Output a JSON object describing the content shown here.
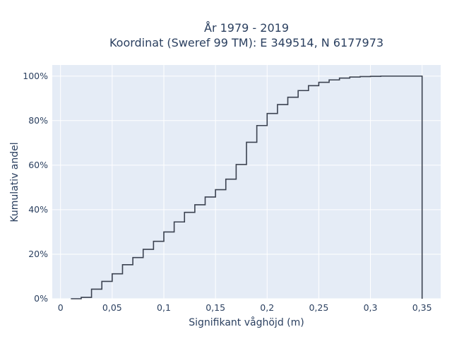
{
  "chart_data": {
    "type": "line",
    "step": true,
    "title_line1": "År 1979 - 2019",
    "title_line2": "Koordinat (Sweref 99 TM): E 349514, N 6177973",
    "xlabel": "Signifikant våghöjd (m)",
    "ylabel": "Kumulativ andel",
    "xlim": [
      -0.008,
      0.368
    ],
    "ylim": [
      0,
      1.05
    ],
    "x_ticks": [
      0,
      0.05,
      0.1,
      0.15,
      0.2,
      0.25,
      0.3,
      0.35
    ],
    "x_tick_labels": [
      "0",
      "0,05",
      "0,1",
      "0,15",
      "0,2",
      "0,25",
      "0,3",
      "0,35"
    ],
    "y_ticks": [
      0,
      0.2,
      0.4,
      0.6,
      0.8,
      1.0
    ],
    "y_tick_labels": [
      "0%",
      "20%",
      "40%",
      "60%",
      "80%",
      "100%"
    ],
    "grid": true,
    "line_color": "#3b4250",
    "plot_bg": "#e5ecf6",
    "series": [
      {
        "x": [
          0.01,
          0.02,
          0.03,
          0.04,
          0.05,
          0.06,
          0.07,
          0.08,
          0.09,
          0.1,
          0.11,
          0.12,
          0.13,
          0.14,
          0.15,
          0.16,
          0.17,
          0.18,
          0.19,
          0.2,
          0.21,
          0.22,
          0.23,
          0.24,
          0.25,
          0.26,
          0.27,
          0.28,
          0.29,
          0.3,
          0.31,
          0.32,
          0.33,
          0.34,
          0.35
        ],
        "y": [
          0.0,
          0.006,
          0.043,
          0.078,
          0.112,
          0.153,
          0.185,
          0.222,
          0.258,
          0.3,
          0.345,
          0.388,
          0.422,
          0.457,
          0.49,
          0.537,
          0.603,
          0.703,
          0.778,
          0.832,
          0.872,
          0.905,
          0.935,
          0.957,
          0.972,
          0.983,
          0.991,
          0.996,
          0.998,
          0.999,
          1.0,
          1.0,
          1.0,
          1.0,
          0.0
        ]
      }
    ]
  }
}
